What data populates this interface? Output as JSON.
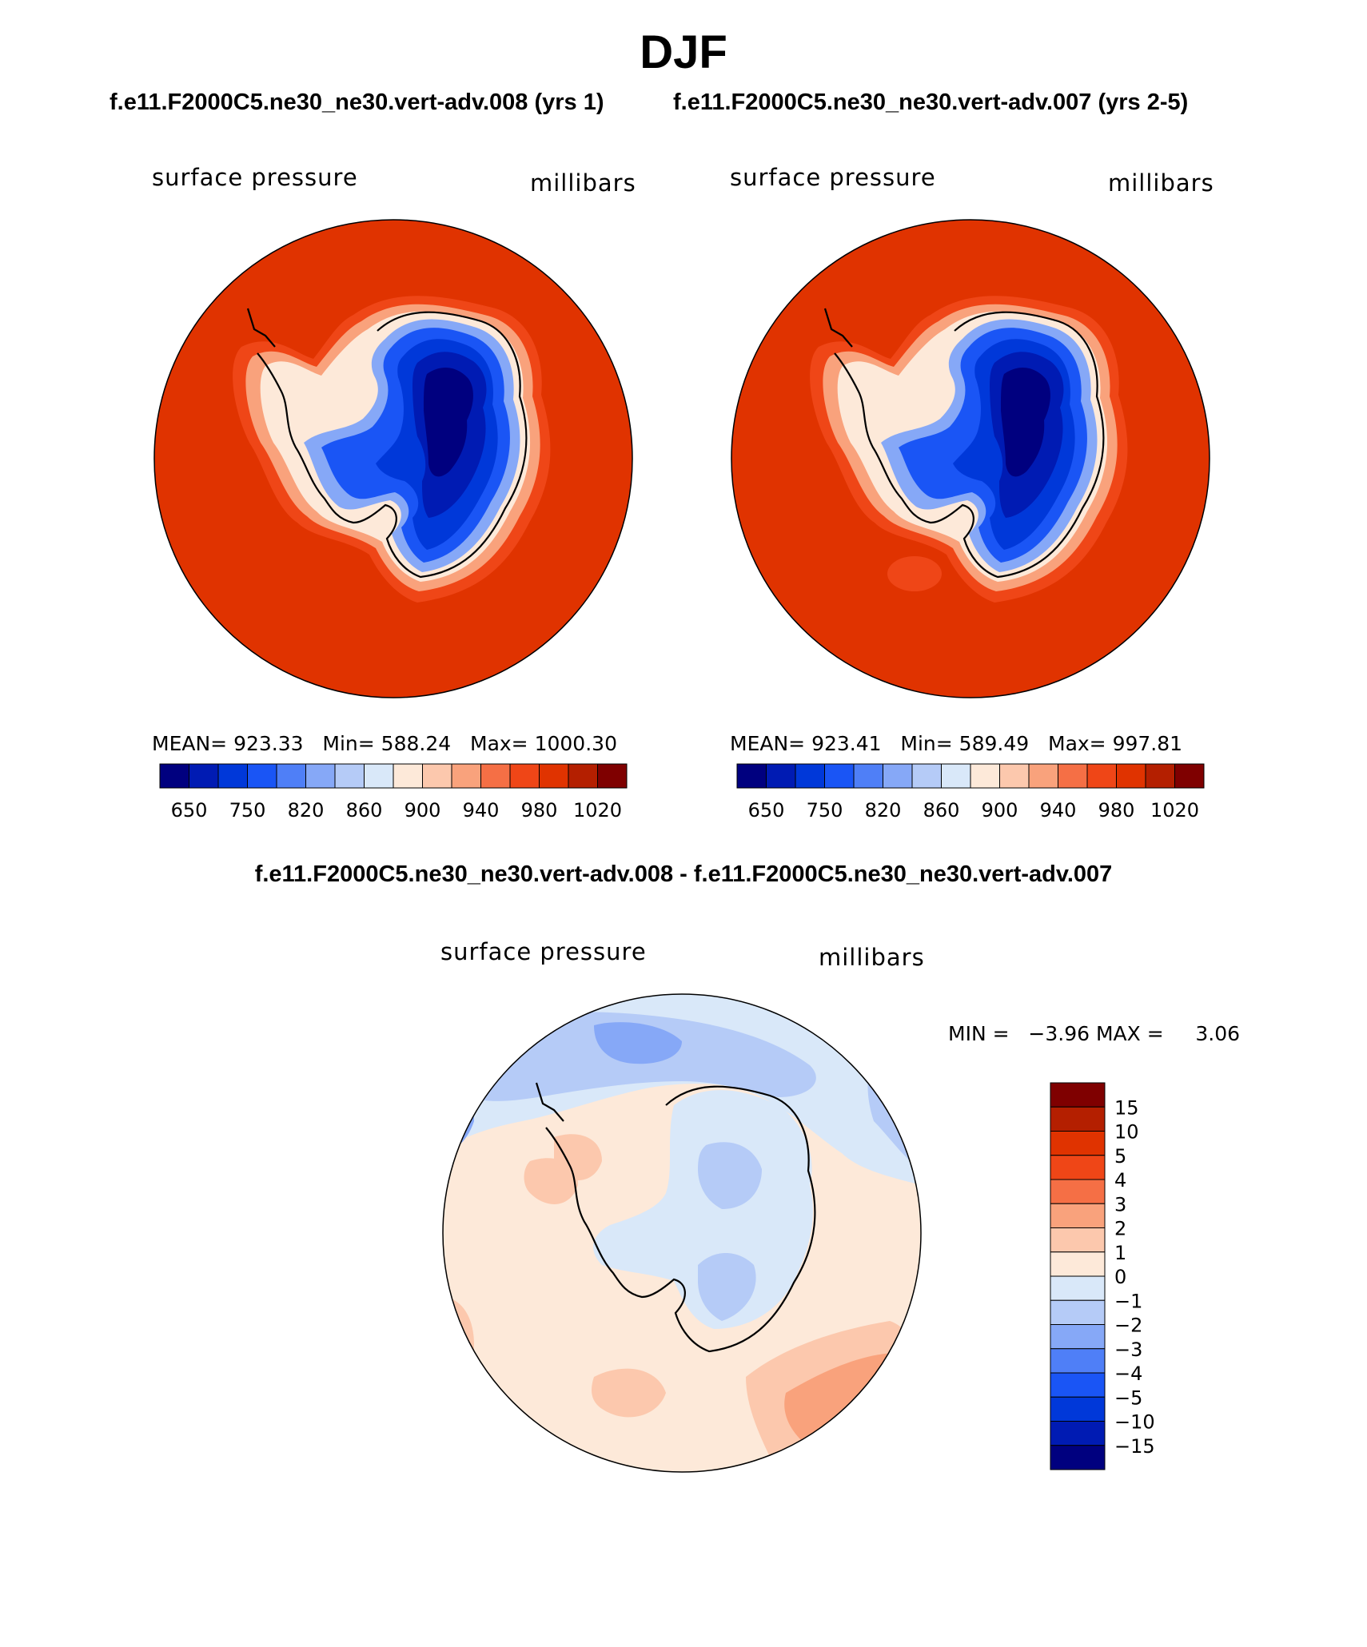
{
  "title": "DJF",
  "panels": [
    {
      "case_title": "f.e11.F2000C5.ne30_ne30.vert-adv.008 (yrs 1)",
      "variable": "surface pressure",
      "units": "millibars",
      "stats": {
        "mean_label": "MEAN=",
        "mean": "923.33",
        "min_label": "Min=",
        "min": "588.24",
        "max_label": "Max=",
        "max": "1000.30"
      }
    },
    {
      "case_title": "f.e11.F2000C5.ne30_ne30.vert-adv.007 (yrs 2-5)",
      "variable": "surface pressure",
      "units": "millibars",
      "stats": {
        "mean_label": "MEAN=",
        "mean": "923.41",
        "min_label": "Min=",
        "min": "589.49",
        "max_label": "Max=",
        "max": "997.81"
      }
    }
  ],
  "difference": {
    "title": "f.e11.F2000C5.ne30_ne30.vert-adv.008 - f.e11.F2000C5.ne30_ne30.vert-adv.007",
    "variable": "surface pressure",
    "units": "millibars",
    "min_label": "MIN =",
    "min": "−3.96",
    "max_label": "MAX =",
    "max": "3.06"
  },
  "chart_data": [
    {
      "type": "heatmap",
      "name": "model colorbar",
      "colors": [
        "#00007f",
        "#001bb3",
        "#0038d9",
        "#1a55f5",
        "#4f7ff7",
        "#86a8f7",
        "#b5cbf7",
        "#d9e8f9",
        "#fde9d9",
        "#fcc8ad",
        "#f9a27c",
        "#f56f45",
        "#ef4617",
        "#e03300",
        "#b41f00",
        "#7f0000"
      ],
      "tick_labels": [
        "650",
        "750",
        "820",
        "860",
        "900",
        "940",
        "980",
        "1020"
      ]
    },
    {
      "type": "heatmap",
      "name": "difference colorbar",
      "colors": [
        "#00007f",
        "#001bb3",
        "#0038d9",
        "#1a55f5",
        "#4f7ff7",
        "#86a8f7",
        "#b5cbf7",
        "#d9e8f9",
        "#fde9d9",
        "#fcc8ad",
        "#f9a27c",
        "#f56f45",
        "#ef4617",
        "#e03300",
        "#b41f00",
        "#7f0000"
      ],
      "tick_labels": [
        "15",
        "10",
        "5",
        "4",
        "3",
        "2",
        "1",
        "0",
        "−1",
        "−2",
        "−3",
        "−4",
        "−5",
        "−10",
        "−15"
      ]
    }
  ],
  "map_colors": {
    "ocean_high": "#e03300",
    "ring1": "#ef4617",
    "ring2": "#f9a27c",
    "ring3": "#fde9d9",
    "ice_edge": "#86a8f7",
    "ice_mid": "#1a55f5",
    "ice_high": "#0038d9",
    "ice_core": "#001bb3",
    "ice_top": "#00007f",
    "diff_ocean": "#fde9d9",
    "diff_light_blue": "#d9e8f9",
    "diff_blue": "#b5cbf7",
    "diff_mid_blue": "#86a8f7",
    "diff_dark_blue": "#4f7ff7",
    "diff_orange": "#fcc8ad",
    "diff_dark_orange": "#f9a27c"
  }
}
